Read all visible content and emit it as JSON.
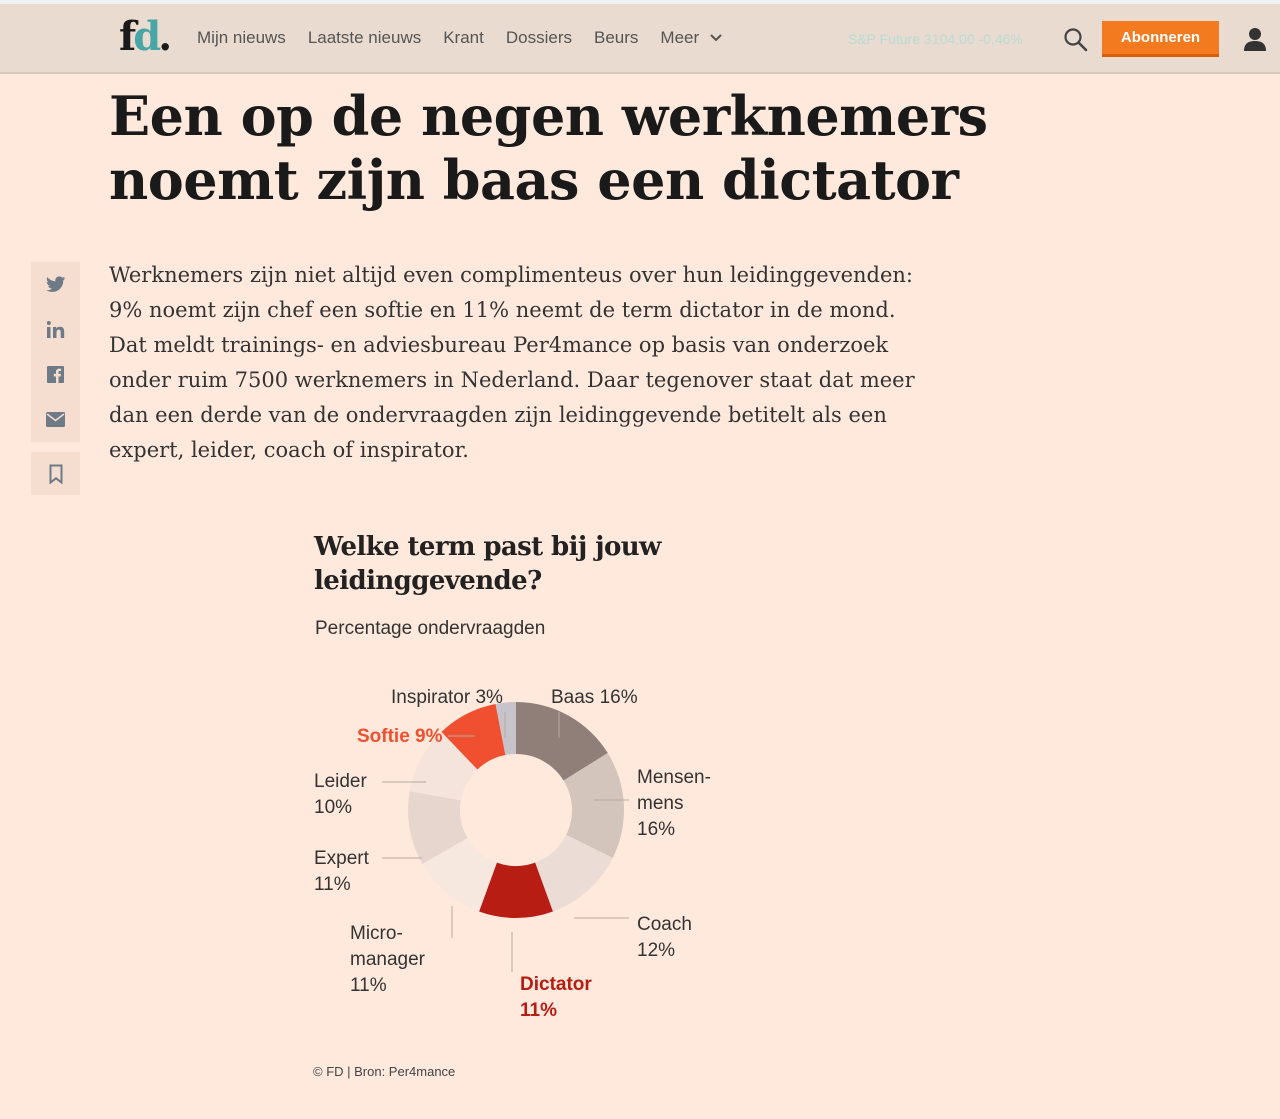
{
  "nav": {
    "logo_f": "f",
    "logo_d": "d",
    "logo_dot": ".",
    "items": [
      "Mijn nieuws",
      "Laatste nieuws",
      "Krant",
      "Dossiers",
      "Beurs",
      "Meer"
    ],
    "ticker": "S&P Future 3104,00 -0,46%",
    "subscribe_label": "Abonneren"
  },
  "article": {
    "headline": "Een op de negen werknemers noemt zijn baas een dictator",
    "lead": "Werknemers zijn niet altijd even complimenteus over hun leidinggevenden: 9% noemt zijn chef een softie en 11% neemt de term dictator in de mond. Dat meldt trainings- en adviesbureau Per4mance op basis van onderzoek onder ruim 7500 werknemers in Nederland. Daar tegenover staat dat meer dan een derde van de ondervraagden zijn leidinggevende betitelt als een expert, leider, coach of inspirator."
  },
  "share": {
    "icons": [
      "twitter-icon",
      "linkedin-icon",
      "facebook-icon",
      "mail-icon",
      "bookmark-icon"
    ]
  },
  "chart_data": {
    "type": "pie",
    "title": "Welke term past bij jouw leidinggevende?",
    "subtitle": "Percentage ondervraagden",
    "slices": [
      {
        "label": "Baas",
        "value": 16,
        "color": "#8f7f78"
      },
      {
        "label": "Mensen-mens",
        "value": 16,
        "color": "#d3c4bc"
      },
      {
        "label": "Coach",
        "value": 12,
        "color": "#ebddd5"
      },
      {
        "label": "Dictator",
        "value": 11,
        "color": "#b81d14"
      },
      {
        "label": "Micro-manager",
        "value": 11,
        "color": "#f6e7df"
      },
      {
        "label": "Expert",
        "value": 11,
        "color": "#e6d6cd"
      },
      {
        "label": "Leider",
        "value": 10,
        "color": "#f4e4db"
      },
      {
        "label": "Softie",
        "value": 9,
        "color": "#f0502f"
      },
      {
        "label": "Inspirator",
        "value": 3,
        "color": "#c6c3cb"
      }
    ],
    "labels": [
      {
        "lines": [
          "Baas 16%"
        ],
        "color": "#333"
      },
      {
        "lines": [
          "Mensen-",
          "mens",
          "16%"
        ],
        "color": "#333"
      },
      {
        "lines": [
          "Coach",
          "12%"
        ],
        "color": "#333"
      },
      {
        "lines": [
          "Dictator",
          "11%"
        ],
        "color": "#b81d14"
      },
      {
        "lines": [
          "Micro-",
          "manager",
          "11%"
        ],
        "color": "#333"
      },
      {
        "lines": [
          "Expert",
          "11%"
        ],
        "color": "#333"
      },
      {
        "lines": [
          "Leider",
          "10%"
        ],
        "color": "#333"
      },
      {
        "lines": [
          "Softie 9%"
        ],
        "color": "#f0502f"
      },
      {
        "lines": [
          "Inspirator 3%"
        ],
        "color": "#333"
      }
    ],
    "source": "© FD | Bron: Per4mance"
  }
}
